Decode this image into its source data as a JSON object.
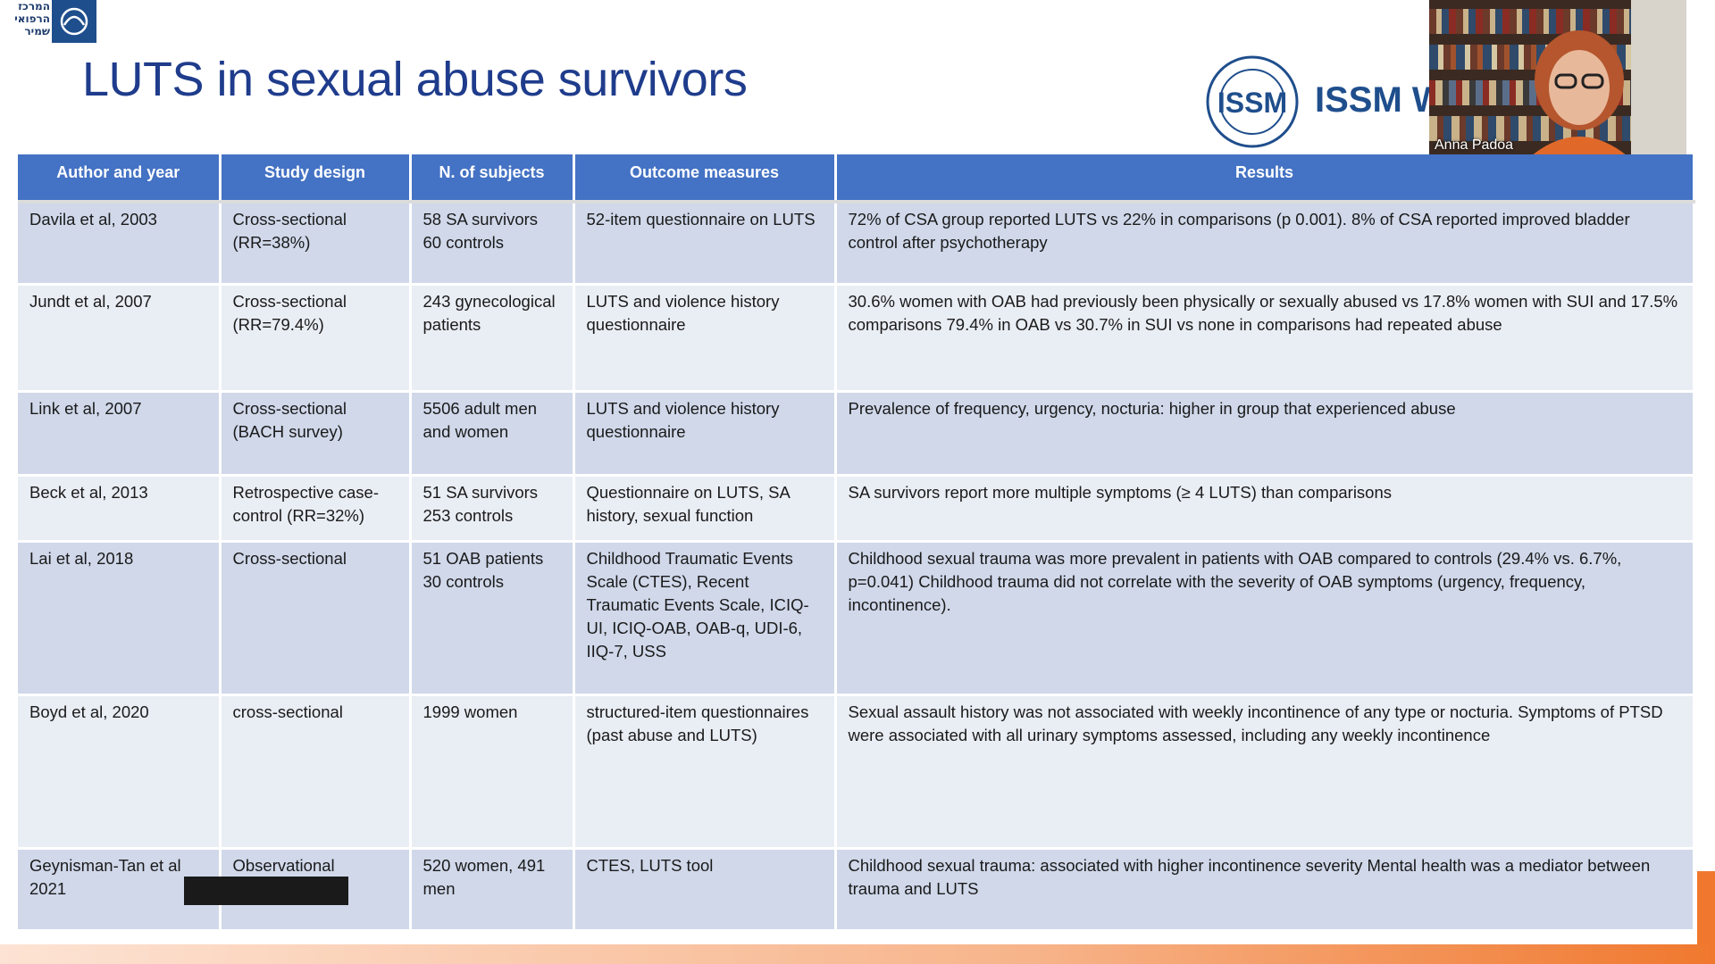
{
  "branding": {
    "org_logo_text": "המרכז הרפואי שמיר",
    "society_logo_text": "ISSM",
    "society_name_partial": "ISSM W"
  },
  "slide": {
    "title": "LUTS in sexual abuse survivors"
  },
  "video": {
    "participant_name": "Anna Padoa"
  },
  "table": {
    "headers": [
      "Author and year",
      "Study design",
      "N. of subjects",
      "Outcome measures",
      "Results"
    ],
    "rows": [
      {
        "author": "Davila et al, 2003",
        "design": "Cross-sectional (RR=38%)",
        "subjects": "58 SA survivors 60 controls",
        "outcome": "52-item questionnaire on LUTS",
        "results": "72% of CSA group reported LUTS vs 22% in comparisons (p 0.001). 8% of CSA reported improved bladder control after psychotherapy"
      },
      {
        "author": "Jundt et al, 2007",
        "design": "Cross-sectional (RR=79.4%)",
        "subjects": "243 gynecological patients",
        "outcome": "LUTS and violence history questionnaire",
        "results": "30.6% women with OAB had previously been physically or sexually abused vs 17.8% women with SUI and 17.5% comparisons 79.4% in OAB vs 30.7% in SUI vs none in comparisons had repeated abuse"
      },
      {
        "author": "Link et al, 2007",
        "design": "Cross-sectional (BACH survey)",
        "subjects": "5506 adult men and women",
        "outcome": "LUTS and violence history questionnaire",
        "results": "Prevalence of frequency, urgency, nocturia: higher in group that experienced abuse"
      },
      {
        "author": "Beck et al, 2013",
        "design": "Retrospective case-control (RR=32%)",
        "subjects": "51 SA survivors 253 controls",
        "outcome": "Questionnaire on LUTS, SA history, sexual function",
        "results": "SA survivors report more multiple symptoms (≥ 4 LUTS) than comparisons"
      },
      {
        "author": "Lai et al, 2018",
        "design": "Cross-sectional",
        "subjects": "51 OAB patients 30 controls",
        "outcome": "Childhood Traumatic Events Scale (CTES), Recent Traumatic Events Scale, ICIQ-UI, ICIQ-OAB, OAB-q, UDI-6, IIQ-7, USS",
        "results": "Childhood sexual trauma was more prevalent in patients with OAB compared to controls (29.4% vs. 6.7%, p=0.041) Childhood trauma did not correlate with the severity of OAB symptoms (urgency, frequency, incontinence)."
      },
      {
        "author": "Boyd et al, 2020",
        "design": "cross-sectional",
        "subjects": "1999 women",
        "outcome": "structured-item questionnaires (past abuse and LUTS)",
        "results": "Sexual assault history was not associated with weekly incontinence of any type or nocturia. Symptoms of PTSD were associated with all urinary symptoms assessed, including any weekly incontinence"
      },
      {
        "author": "Geynisman-Tan et al 2021",
        "design": "Observational",
        "subjects": "520 women, 491 men",
        "outcome": "CTES, LUTS tool",
        "results": "Childhood sexual trauma: associated with higher incontinence severity Mental health was a mediator between trauma and LUTS"
      }
    ]
  }
}
